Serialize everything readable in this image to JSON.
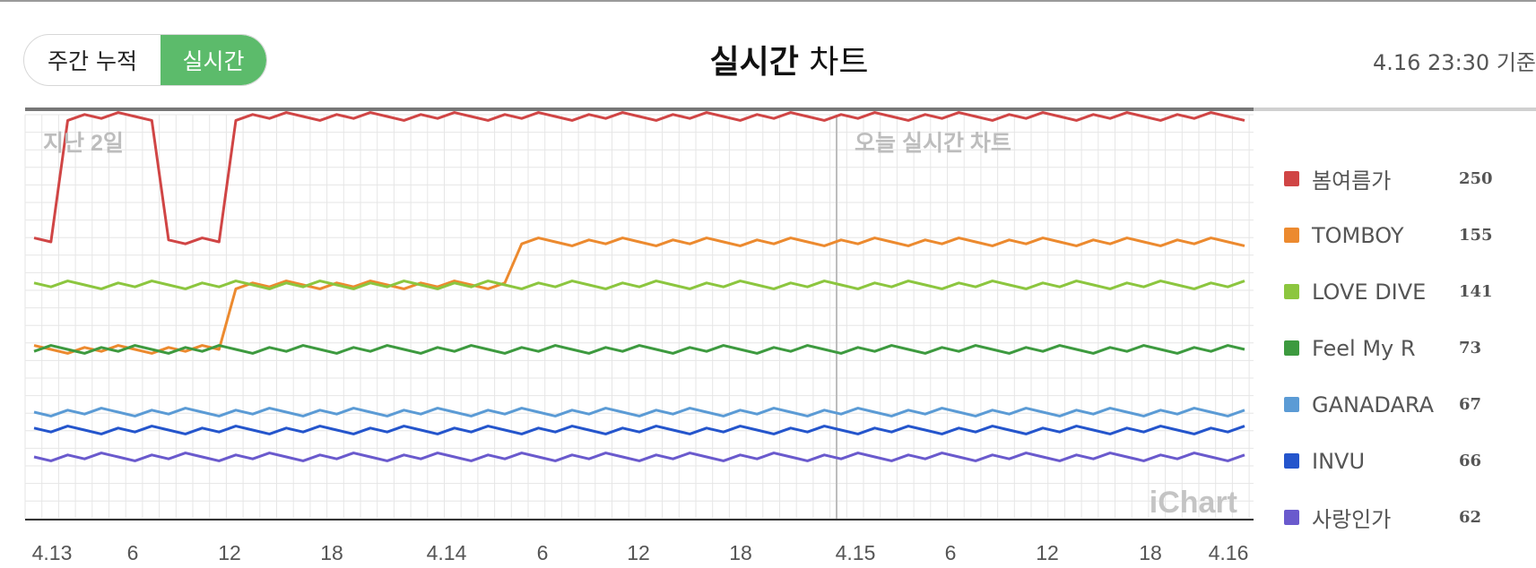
{
  "toggle": {
    "weekly_label": "주간 누적",
    "realtime_label": "실시간"
  },
  "header": {
    "title_strong": "실시간",
    "title_rest": "차트",
    "timestamp": "4.16 23:30 기준"
  },
  "chart_data": {
    "type": "line",
    "y_axis": "rank (inverted, 1 at top)",
    "x_tick_labels": [
      "4.13",
      "6",
      "12",
      "18",
      "4.14",
      "6",
      "12",
      "18",
      "4.15",
      "6",
      "12",
      "18",
      "4.16"
    ],
    "annotations": {
      "past_label": "지난 2일",
      "today_label": "오늘 실시간 차트",
      "watermark": "iChart"
    },
    "series": [
      {
        "name": "봄여름가",
        "value": 250,
        "color": "#d04545",
        "ranks": [
          2,
          2,
          1,
          1,
          1,
          1,
          1,
          1,
          2,
          2,
          2,
          2,
          1,
          1,
          1,
          1,
          1,
          1,
          1,
          1,
          1,
          1,
          1,
          1,
          1,
          1,
          1,
          1,
          1,
          1,
          1,
          1,
          1,
          1,
          1,
          1,
          1,
          1,
          1,
          1,
          1,
          1,
          1,
          1,
          1,
          1,
          1,
          1,
          1,
          1,
          1,
          1,
          1,
          1,
          1,
          1,
          1,
          1,
          1,
          1,
          1,
          1,
          1,
          1,
          1,
          1,
          1,
          1,
          1,
          1,
          1,
          1,
          1
        ]
      },
      {
        "name": "TOMBOY",
        "value": 155,
        "color": "#ec8a2f",
        "ranks": [
          4,
          4,
          4,
          4,
          4,
          4,
          4,
          4,
          4,
          4,
          4,
          4,
          3,
          3,
          3,
          3,
          3,
          3,
          3,
          3,
          3,
          3,
          3,
          3,
          3,
          3,
          3,
          3,
          3,
          2,
          2,
          2,
          2,
          2,
          2,
          2,
          2,
          2,
          2,
          2,
          2,
          2,
          2,
          2,
          2,
          2,
          2,
          2,
          2,
          2,
          2,
          2,
          2,
          2,
          2,
          2,
          2,
          2,
          2,
          2,
          2,
          2,
          2,
          2,
          2,
          2,
          2,
          2,
          2,
          2,
          2,
          2,
          2
        ]
      },
      {
        "name": "LOVE DIVE",
        "value": 141,
        "color": "#8cc63f",
        "ranks": [
          3,
          3,
          3,
          3,
          3,
          3,
          3,
          3,
          3,
          3,
          3,
          3,
          3,
          3,
          3,
          3,
          3,
          3,
          3,
          3,
          3,
          3,
          3,
          3,
          3,
          3,
          3,
          3,
          3,
          3,
          3,
          3,
          3,
          3,
          3,
          3,
          3,
          3,
          3,
          3,
          3,
          3,
          3,
          3,
          3,
          3,
          3,
          3,
          3,
          3,
          3,
          3,
          3,
          3,
          3,
          3,
          3,
          3,
          3,
          3,
          3,
          3,
          3,
          3,
          3,
          3,
          3,
          3,
          3,
          3,
          3,
          3,
          3
        ]
      },
      {
        "name": "Feel My R",
        "value": 73,
        "color": "#3d9a3f",
        "ranks": [
          4,
          4,
          4,
          4,
          4,
          4,
          4,
          4,
          4,
          4,
          4,
          4,
          4,
          4,
          4,
          4,
          4,
          4,
          4,
          4,
          4,
          4,
          4,
          4,
          4,
          4,
          4,
          4,
          4,
          4,
          4,
          4,
          4,
          4,
          4,
          4,
          4,
          4,
          4,
          4,
          4,
          4,
          4,
          4,
          4,
          4,
          4,
          4,
          4,
          4,
          4,
          4,
          4,
          4,
          4,
          4,
          4,
          4,
          4,
          4,
          4,
          4,
          4,
          4,
          4,
          4,
          4,
          4,
          4,
          4,
          4,
          4,
          4
        ]
      },
      {
        "name": "GANADARA",
        "value": 67,
        "color": "#5b9bd5",
        "ranks": [
          5,
          5,
          5,
          5,
          5,
          5,
          5,
          5,
          5,
          5,
          5,
          5,
          5,
          5,
          5,
          5,
          5,
          5,
          5,
          5,
          5,
          5,
          5,
          5,
          5,
          5,
          5,
          5,
          5,
          5,
          5,
          5,
          5,
          5,
          5,
          5,
          5,
          5,
          5,
          5,
          5,
          5,
          5,
          5,
          5,
          5,
          5,
          5,
          5,
          5,
          5,
          5,
          5,
          5,
          5,
          5,
          5,
          5,
          5,
          5,
          5,
          5,
          5,
          5,
          5,
          5,
          5,
          5,
          5,
          5,
          5,
          5,
          5
        ]
      },
      {
        "name": "INVU",
        "value": 66,
        "color": "#2455cc",
        "ranks": [
          6,
          6,
          6,
          6,
          6,
          6,
          6,
          6,
          6,
          6,
          6,
          6,
          6,
          6,
          6,
          6,
          6,
          6,
          6,
          6,
          6,
          6,
          6,
          6,
          6,
          6,
          6,
          6,
          6,
          6,
          6,
          6,
          6,
          6,
          6,
          6,
          6,
          6,
          6,
          6,
          6,
          6,
          6,
          6,
          6,
          6,
          6,
          6,
          6,
          6,
          6,
          6,
          6,
          6,
          6,
          6,
          6,
          6,
          6,
          6,
          6,
          6,
          6,
          6,
          6,
          6,
          6,
          6,
          6,
          6,
          6,
          6,
          6
        ]
      },
      {
        "name": "사랑인가",
        "value": 62,
        "color": "#6a5acd",
        "ranks": [
          7,
          7,
          7,
          7,
          7,
          7,
          7,
          7,
          7,
          7,
          7,
          7,
          7,
          7,
          7,
          7,
          7,
          7,
          7,
          7,
          7,
          7,
          7,
          7,
          7,
          7,
          7,
          7,
          7,
          7,
          7,
          7,
          7,
          7,
          7,
          7,
          7,
          7,
          7,
          7,
          7,
          7,
          7,
          7,
          7,
          7,
          7,
          7,
          7,
          7,
          7,
          7,
          7,
          7,
          7,
          7,
          7,
          7,
          7,
          7,
          7,
          7,
          7,
          7,
          7,
          7,
          7,
          7,
          7,
          7,
          7,
          7,
          7
        ]
      }
    ]
  }
}
